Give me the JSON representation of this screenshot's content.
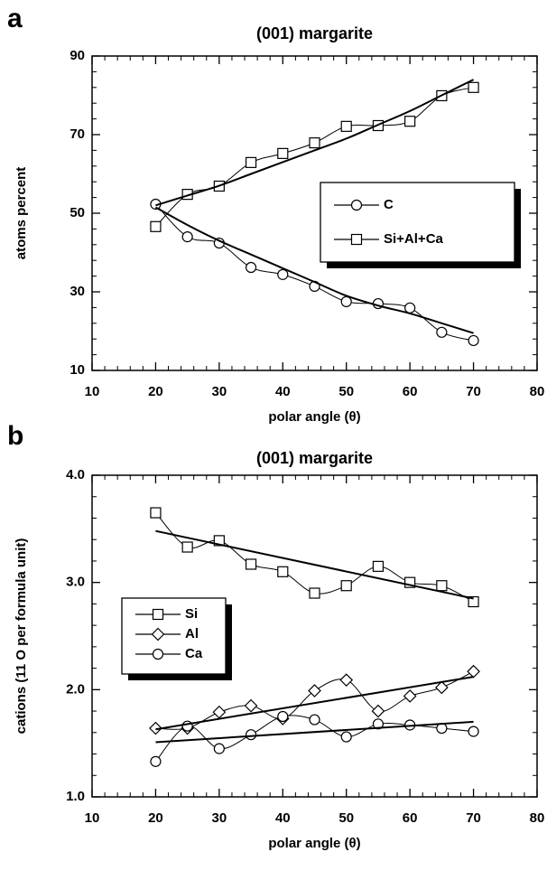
{
  "chart_data": [
    {
      "type": "line",
      "panel_label": "a",
      "title": "(001) margarite",
      "x_label": "polar angle (θ)",
      "y_label": "atoms percent",
      "x": [
        20,
        25,
        30,
        35,
        40,
        45,
        50,
        55,
        60,
        65,
        70
      ],
      "xlim": [
        10,
        80
      ],
      "xticks": [
        10,
        20,
        30,
        40,
        50,
        60,
        70,
        80
      ],
      "ylim": [
        10,
        90
      ],
      "yticks": [
        10,
        30,
        50,
        70,
        90
      ],
      "legend": "center right",
      "series": [
        {
          "name": "C",
          "marker": "circle",
          "color": "#000000",
          "values": [
            52.3,
            44,
            42.4,
            36.2,
            34.4,
            31.4,
            27.5,
            27,
            25.9,
            19.7,
            17.6
          ]
        },
        {
          "name": "Si+Al+Ca",
          "marker": "square",
          "color": "#000000",
          "values": [
            46.6,
            54.8,
            56.9,
            62.9,
            65.2,
            67.9,
            72.1,
            72.3,
            73.4,
            79.9,
            82
          ]
        },
        {
          "color": "#000000",
          "values": [
            51.5,
            47,
            43,
            39.5,
            36,
            32.5,
            29,
            26.5,
            24.5,
            22,
            19.5
          ]
        },
        {
          "color": "#000000",
          "values": [
            52,
            54.5,
            57,
            60,
            63,
            66,
            69,
            72.5,
            76,
            80,
            84
          ]
        }
      ]
    },
    {
      "type": "line",
      "panel_label": "b",
      "title": "(001) margarite",
      "x_label": "polar angle (θ)",
      "y_label": "cations (11 O per formula unit)",
      "x": [
        20,
        25,
        30,
        35,
        40,
        45,
        50,
        55,
        60,
        65,
        70
      ],
      "xlim": [
        10,
        80
      ],
      "xticks": [
        10,
        20,
        30,
        40,
        50,
        60,
        70,
        80
      ],
      "ylim": [
        1,
        4
      ],
      "yticks": [
        {
          "value": 1,
          "label": "1.0"
        },
        {
          "value": 2,
          "label": "2.0"
        },
        {
          "value": 3,
          "label": "3.0"
        },
        {
          "value": 4,
          "label": "4.0"
        }
      ],
      "legend": "center left",
      "series": [
        {
          "name": "Si",
          "marker": "square",
          "color": "#000000",
          "values": [
            3.65,
            3.33,
            3.39,
            3.17,
            3.1,
            2.9,
            2.97,
            3.15,
            3.0,
            2.97,
            2.82
          ]
        },
        {
          "name": "Al",
          "marker": "diamond",
          "color": "#000000",
          "values": [
            1.64,
            1.64,
            1.79,
            1.85,
            1.73,
            1.99,
            2.09,
            1.8,
            1.94,
            2.02,
            2.17
          ]
        },
        {
          "name": "Ca",
          "marker": "circle",
          "color": "#000000",
          "values": [
            1.33,
            1.66,
            1.45,
            1.58,
            1.75,
            1.72,
            1.56,
            1.68,
            1.67,
            1.64,
            1.61
          ]
        },
        {
          "color": "#000000",
          "x": [
            20,
            70
          ],
          "values": [
            3.48,
            2.85
          ]
        },
        {
          "color": "#000000",
          "x": [
            20,
            70
          ],
          "values": [
            1.63,
            2.12
          ]
        },
        {
          "color": "#000000",
          "x": [
            20,
            70
          ],
          "values": [
            1.51,
            1.7
          ]
        }
      ]
    }
  ]
}
